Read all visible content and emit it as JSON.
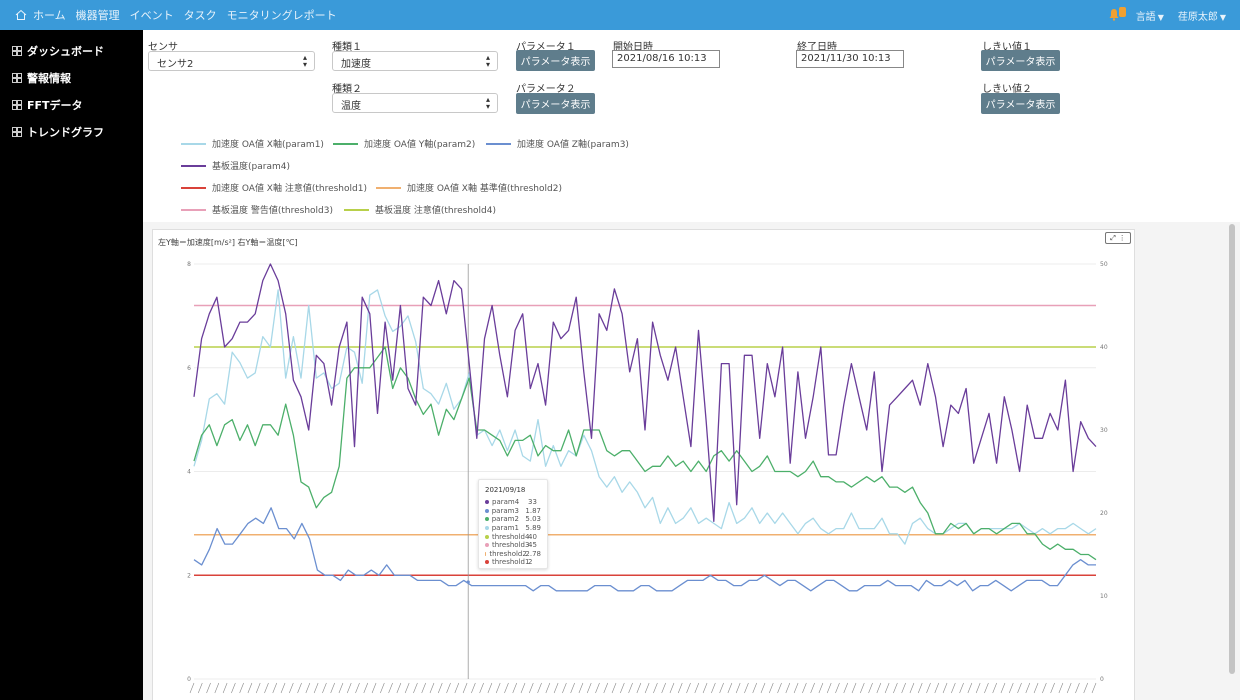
{
  "topbar": {
    "nav": [
      "ホーム",
      "機器管理",
      "イベント",
      "タスク",
      "モニタリングレポート"
    ],
    "language": "言語",
    "user": "荏原太郎"
  },
  "sidebar": {
    "items": [
      "ダッシュボード",
      "警報情報",
      "FFTデータ",
      "トレンドグラフ"
    ]
  },
  "form": {
    "sensor_label": "センサ",
    "sensor_value": "センサ2",
    "kind1_label": "種類１",
    "kind1_value": "加速度",
    "kind2_label": "種類２",
    "kind2_value": "温度",
    "param1_label": "パラメータ１",
    "param2_label": "パラメータ２",
    "show_params": "パラメータ表示",
    "start_label": "開始日時",
    "start_value": "2021/08/16 10:13",
    "end_label": "終了日時",
    "end_value": "2021/11/30 10:13",
    "threshold1_label": "しきい値１",
    "threshold2_label": "しきい値２"
  },
  "legend": [
    {
      "label": "加速度 OA値 X軸(param1)",
      "color": "#a8d8e8"
    },
    {
      "label": "加速度 OA値 Y軸(param2)",
      "color": "#4caf6a"
    },
    {
      "label": "加速度 OA値 Z軸(param3)",
      "color": "#6b8fd0"
    },
    {
      "label": "基板温度(param4)",
      "color": "#6a3d9a"
    },
    {
      "label": "加速度 OA値 X軸 注意値(threshold1)",
      "color": "#d9423a"
    },
    {
      "label": "加速度 OA値 X軸 基準値(threshold2)",
      "color": "#f0b070"
    },
    {
      "label": "基板温度 警告値(threshold3)",
      "color": "#e8a0b8"
    },
    {
      "label": "基板温度 注意値(threshold4)",
      "color": "#b8d04a"
    }
  ],
  "chart": {
    "axis_title": "左Y軸＝加速度[m/s²] 右Y軸＝温度[℃]"
  },
  "tooltip": {
    "date": "2021/09/18",
    "rows": [
      {
        "name": "param4",
        "value": "33",
        "color": "#6a3d9a"
      },
      {
        "name": "param3",
        "value": "1.87",
        "color": "#6b8fd0"
      },
      {
        "name": "param2",
        "value": "5.03",
        "color": "#4caf6a"
      },
      {
        "name": "param1",
        "value": "5.89",
        "color": "#a8d8e8"
      },
      {
        "name": "threshold4",
        "value": "40",
        "color": "#b8d04a"
      },
      {
        "name": "threshold3",
        "value": "45",
        "color": "#e8a0b8"
      },
      {
        "name": "threshold2",
        "value": "2.78",
        "color": "#f0b070"
      },
      {
        "name": "threshold1",
        "value": "2",
        "color": "#d9423a"
      }
    ]
  },
  "chart_data": {
    "type": "line",
    "title": "左Y軸＝加速度[m/s²] 右Y軸＝温度[℃]",
    "x_start": "2021/08/16",
    "x_end": "2021/11/30",
    "y_left_lim": [
      0,
      8
    ],
    "y_left_ticks": [
      "0",
      "2",
      "4",
      "6",
      "8"
    ],
    "y_right_lim": [
      0,
      50
    ],
    "y_right_ticks": [
      "0",
      "10",
      "20",
      "30",
      "40",
      "50"
    ],
    "series": [
      {
        "name": "param4",
        "axis": "right",
        "color": "#6a3d9a",
        "values": [
          34,
          41,
          44,
          46,
          40,
          41,
          43,
          43,
          44,
          48,
          50,
          48,
          44,
          36,
          34,
          30,
          39,
          38,
          33,
          40,
          43,
          28,
          46,
          44,
          32,
          43,
          36,
          45,
          35,
          33,
          46,
          45,
          48,
          44,
          48,
          47,
          38,
          29,
          41,
          45,
          39,
          34,
          42,
          44,
          35,
          38,
          33,
          43,
          41,
          42,
          46,
          37,
          29,
          44,
          42,
          47,
          44,
          37,
          41,
          30,
          43,
          39,
          36,
          40,
          34,
          28,
          42,
          31,
          19,
          38,
          38,
          21,
          39,
          39,
          29,
          38,
          34,
          40,
          26,
          37,
          29,
          34,
          40,
          27,
          27,
          33,
          38,
          34,
          30,
          37,
          25,
          33,
          34,
          35,
          36,
          33,
          38,
          34,
          28,
          33,
          32,
          35,
          26,
          29,
          32,
          26,
          34,
          30,
          25,
          33,
          29,
          29,
          32,
          30,
          36,
          25,
          31,
          29,
          28
        ],
        "values_note": "approximate trace"
      },
      {
        "name": "param1",
        "axis": "left",
        "color": "#a8d8e8",
        "values": [
          4.1,
          4.6,
          5.4,
          5.5,
          5.3,
          6.3,
          6.1,
          5.8,
          5.9,
          6.6,
          6.4,
          7.5,
          5.8,
          6.6,
          5.8,
          7.2,
          5.8,
          5.9,
          5.6,
          5.7,
          6.4,
          6.3,
          5.7,
          7.4,
          7.5,
          7.0,
          6.7,
          6.8,
          7.0,
          6.5,
          5.6,
          5.5,
          5.3,
          5.7,
          5.2,
          5.4,
          5.9,
          4.7,
          4.8,
          4.5,
          4.8,
          4.4,
          4.8,
          4.3,
          4.2,
          5.0,
          4.1,
          4.5,
          4.1,
          4.4,
          4.3,
          4.7,
          4.4,
          3.9,
          3.7,
          3.9,
          3.6,
          3.8,
          3.6,
          3.3,
          3.5,
          3.0,
          3.3,
          3.0,
          3.1,
          3.3,
          3.0,
          3.1,
          3.0,
          2.9,
          3.4,
          3.0,
          3.1,
          3.3,
          3.0,
          3.2,
          3.0,
          3.2,
          3.0,
          2.8,
          3.0,
          3.1,
          2.9,
          2.8,
          2.9,
          2.9,
          3.2,
          2.9,
          2.9,
          2.9,
          3.1,
          2.8,
          2.8,
          2.6,
          3.0,
          3.1,
          2.9,
          2.8,
          2.8,
          2.9,
          3.0,
          3.0,
          2.8,
          2.9,
          2.9,
          2.9,
          2.9,
          2.9,
          3.0,
          2.9,
          2.8,
          2.9,
          2.8,
          2.9,
          2.9,
          3.0,
          2.9,
          2.8,
          2.9
        ]
      },
      {
        "name": "param2",
        "axis": "left",
        "color": "#4caf6a",
        "values": [
          4.2,
          4.7,
          4.9,
          4.5,
          4.9,
          5.0,
          4.6,
          4.9,
          4.5,
          4.9,
          4.9,
          4.7,
          5.3,
          4.7,
          3.8,
          3.7,
          3.3,
          3.5,
          3.6,
          4.1,
          5.8,
          6.0,
          6.0,
          6.0,
          6.2,
          6.4,
          5.6,
          6.0,
          5.8,
          5.4,
          5.1,
          5.3,
          4.7,
          5.2,
          5.0,
          5.4,
          5.8,
          4.8,
          4.8,
          4.7,
          4.6,
          4.3,
          4.6,
          4.6,
          4.7,
          4.3,
          4.5,
          4.4,
          4.4,
          4.8,
          4.3,
          4.8,
          4.8,
          4.8,
          4.4,
          4.3,
          4.4,
          4.4,
          4.2,
          4.0,
          4.1,
          4.1,
          4.3,
          4.1,
          4.2,
          4.0,
          4.2,
          4.0,
          4.3,
          4.4,
          4.2,
          4.4,
          4.2,
          4.0,
          4.1,
          4.3,
          4.0,
          4.0,
          4.0,
          3.9,
          4.0,
          4.2,
          3.9,
          3.9,
          3.8,
          3.8,
          3.7,
          3.8,
          3.9,
          3.8,
          3.9,
          3.7,
          3.7,
          3.6,
          3.7,
          3.4,
          3.2,
          2.8,
          2.8,
          3.0,
          2.9,
          3.0,
          2.8,
          2.9,
          2.9,
          2.8,
          2.9,
          3.0,
          3.0,
          2.8,
          2.8,
          2.6,
          2.5,
          2.6,
          2.5,
          2.5,
          2.4,
          2.4,
          2.3
        ]
      },
      {
        "name": "param3",
        "axis": "left",
        "color": "#6b8fd0",
        "values": [
          2.3,
          2.2,
          2.5,
          2.9,
          2.6,
          2.6,
          2.8,
          3.0,
          3.1,
          3.0,
          3.3,
          2.9,
          2.9,
          2.7,
          3.0,
          2.7,
          2.1,
          2.0,
          2.0,
          1.9,
          2.1,
          2.0,
          2.0,
          2.1,
          2.0,
          2.2,
          2.0,
          2.0,
          2.0,
          1.9,
          1.9,
          1.9,
          1.9,
          1.8,
          1.8,
          1.9,
          1.8,
          1.8,
          1.8,
          1.8,
          1.8,
          1.8,
          1.8,
          1.8,
          1.7,
          1.8,
          1.8,
          1.7,
          1.7,
          1.7,
          1.7,
          1.7,
          1.8,
          1.8,
          1.8,
          1.7,
          1.7,
          1.7,
          1.8,
          1.8,
          1.7,
          1.7,
          1.7,
          1.8,
          1.9,
          1.9,
          1.9,
          2.0,
          1.9,
          1.9,
          1.8,
          1.8,
          1.9,
          1.9,
          2.0,
          1.9,
          1.8,
          1.9,
          1.9,
          1.8,
          1.7,
          1.8,
          1.9,
          1.9,
          1.8,
          1.7,
          1.7,
          1.8,
          1.8,
          1.8,
          1.9,
          1.8,
          1.8,
          1.8,
          1.7,
          1.9,
          1.8,
          1.8,
          1.9,
          1.8,
          1.9,
          1.7,
          1.8,
          1.8,
          1.9,
          1.8,
          1.7,
          1.8,
          1.9,
          1.9,
          1.9,
          1.8,
          1.8,
          2.0,
          2.2,
          2.3,
          2.2,
          2.2
        ]
      },
      {
        "name": "threshold1",
        "axis": "left",
        "color": "#d9423a",
        "values": [
          2
        ]
      },
      {
        "name": "threshold2",
        "axis": "left",
        "color": "#f0b070",
        "values": [
          2.78
        ]
      },
      {
        "name": "threshold3",
        "axis": "right",
        "color": "#e8a0b8",
        "values": [
          45
        ]
      },
      {
        "name": "threshold4",
        "axis": "right",
        "color": "#b8d04a",
        "values": [
          40
        ]
      }
    ],
    "hover_date": "2021/09/18",
    "grid": true
  }
}
